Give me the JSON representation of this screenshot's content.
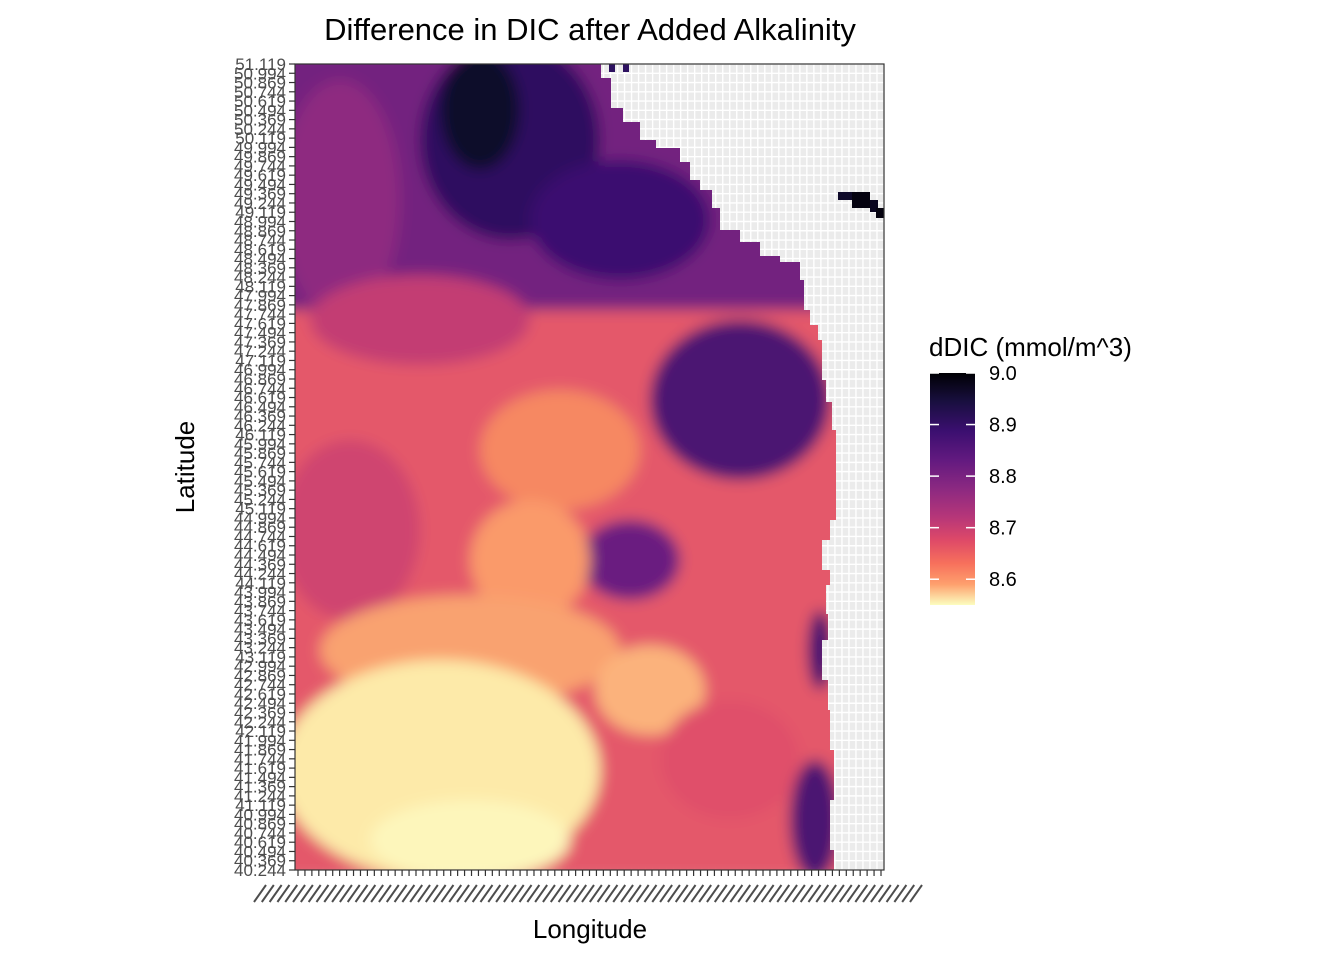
{
  "chart_data": {
    "type": "heatmap",
    "title": "Difference in DIC after Added Alkalinity",
    "xlabel": "Longitude",
    "ylabel": "Latitude",
    "y_tick_labels": [
      "51.119",
      "50.994",
      "50.869",
      "50.744",
      "50.619",
      "50.494",
      "50.369",
      "50.244",
      "50.119",
      "49.994",
      "49.869",
      "49.744",
      "49.619",
      "49.494",
      "49.369",
      "49.244",
      "49.119",
      "48.994",
      "48.869",
      "48.744",
      "48.619",
      "48.494",
      "48.369",
      "48.244",
      "48.119",
      "47.994",
      "47.869",
      "47.744",
      "47.619",
      "47.494",
      "47.369",
      "47.244",
      "47.119",
      "46.994",
      "46.869",
      "46.744",
      "46.619",
      "46.494",
      "46.369",
      "46.244",
      "46.119",
      "45.994",
      "45.869",
      "45.744",
      "45.619",
      "45.494",
      "45.369",
      "45.244",
      "45.119",
      "44.994",
      "44.869",
      "44.744",
      "44.619",
      "44.494",
      "44.369",
      "44.244",
      "44.119",
      "43.994",
      "43.869",
      "43.744",
      "43.619",
      "43.494",
      "43.369",
      "43.244",
      "43.119",
      "42.994",
      "42.869",
      "42.744",
      "42.619",
      "42.494",
      "42.369",
      "42.244",
      "42.119",
      "41.994",
      "41.869",
      "41.744",
      "41.619",
      "41.494",
      "41.369",
      "41.244",
      "41.119",
      "40.994",
      "40.869",
      "40.744",
      "40.619",
      "40.494",
      "40.369",
      "40.244"
    ],
    "ylim": [
      40.244,
      51.119
    ],
    "legend": {
      "title": "dDIC (mmol/m^3)",
      "breaks": [
        9.0,
        8.9,
        8.8,
        8.7,
        8.6
      ],
      "break_labels": [
        "9.0",
        "8.9",
        "8.8",
        "8.7",
        "8.6"
      ],
      "range": [
        8.55,
        9.0
      ],
      "colormap": "magma (reversed)",
      "position": "right"
    },
    "grid": true,
    "background_color": "#ebebeb",
    "missing_color": "#f2f2f2"
  }
}
